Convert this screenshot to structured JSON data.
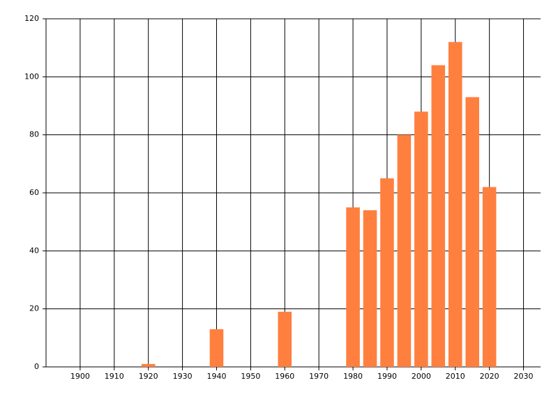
{
  "chart_data": {
    "type": "bar",
    "x": [
      1920,
      1940,
      1960,
      1980,
      1985,
      1990,
      1995,
      2000,
      2005,
      2010,
      2015,
      2020
    ],
    "values": [
      1,
      13,
      19,
      55,
      54,
      65,
      80,
      88,
      104,
      112,
      93,
      62
    ],
    "color": "#ff7f3f",
    "xlim": [
      1890,
      2035
    ],
    "xticks": [
      1900,
      1910,
      1920,
      1930,
      1940,
      1950,
      1960,
      1970,
      1980,
      1990,
      2000,
      2010,
      2020,
      2030
    ],
    "ylim": [
      0,
      120
    ],
    "yticks": [
      0,
      20,
      40,
      60,
      80,
      100,
      120
    ],
    "bar_width": 4,
    "grid": true
  }
}
